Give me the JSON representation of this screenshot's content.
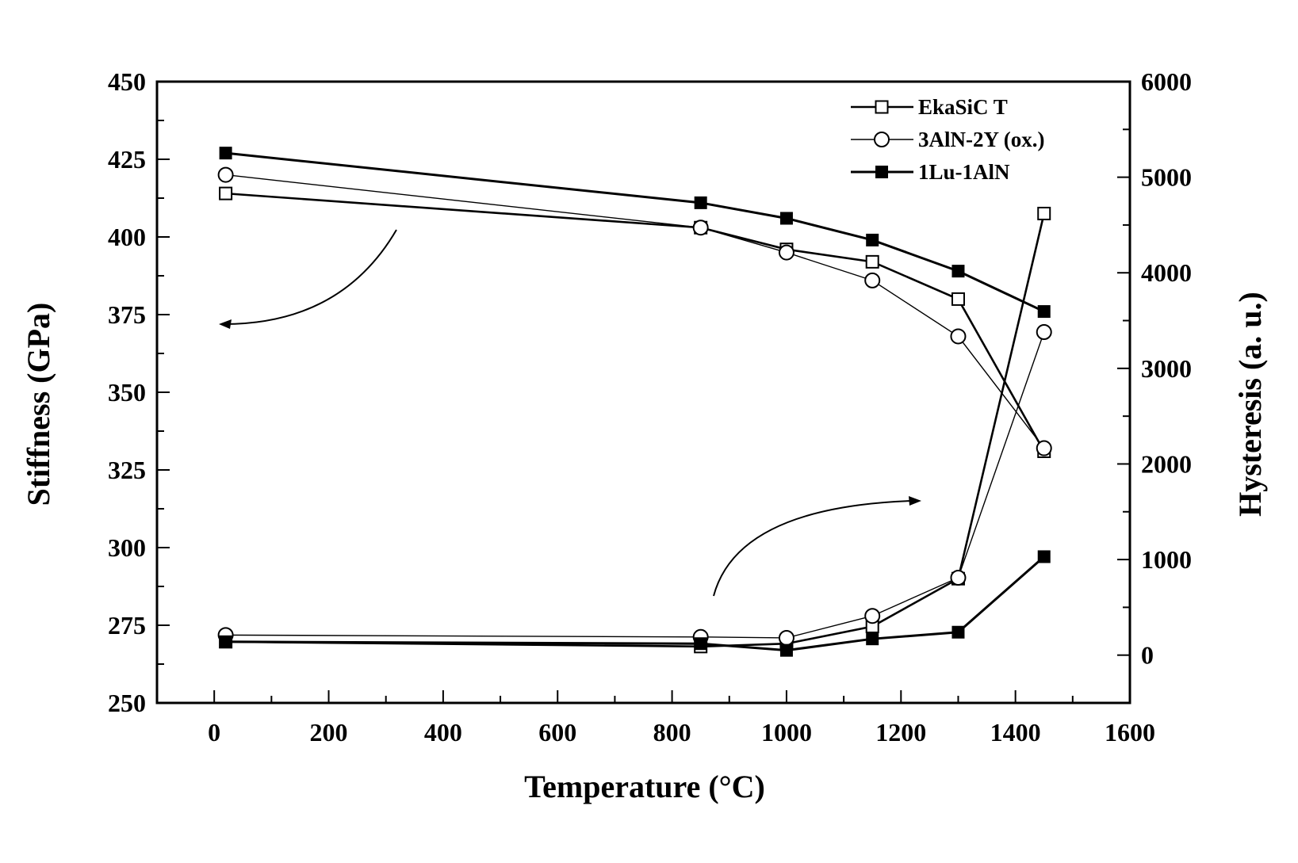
{
  "chart_data": {
    "type": "line",
    "xlabel": "Temperature (°C)",
    "ylabel": "Stiffness (GPa)",
    "y2label": "Hysteresis (a. u.)",
    "xlim": [
      -100,
      1600
    ],
    "ylim": [
      250,
      450
    ],
    "y2lim": [
      -500,
      6000
    ],
    "xticks": [
      0,
      200,
      400,
      600,
      800,
      1000,
      1200,
      1400,
      1600
    ],
    "yticks": [
      250,
      275,
      300,
      325,
      350,
      375,
      400,
      425,
      450
    ],
    "y2ticks": [
      0,
      1000,
      2000,
      3000,
      4000,
      5000,
      6000
    ],
    "legend_position": "top-right",
    "grid": false,
    "series": [
      {
        "name": "EkaSiC T",
        "marker": "open-square",
        "stiffness": {
          "x": [
            20,
            850,
            1000,
            1150,
            1300,
            1450
          ],
          "y": [
            414,
            403,
            396,
            392,
            380,
            331
          ]
        },
        "hysteresis": {
          "x": [
            20,
            850,
            1000,
            1150,
            1300,
            1450
          ],
          "y": [
            140,
            90,
            120,
            300,
            800,
            4620
          ]
        }
      },
      {
        "name": "3AlN-2Y (ox.)",
        "marker": "open-circle",
        "stiffness": {
          "x": [
            20,
            850,
            1000,
            1150,
            1300,
            1450
          ],
          "y": [
            420,
            403,
            395,
            386,
            368,
            332
          ]
        },
        "hysteresis": {
          "x": [
            20,
            850,
            1000,
            1150,
            1300,
            1450
          ],
          "y": [
            210,
            190,
            180,
            410,
            810,
            3380
          ]
        }
      },
      {
        "name": "1Lu-1AlN",
        "marker": "filled-square",
        "stiffness": {
          "x": [
            20,
            850,
            1000,
            1150,
            1300,
            1450
          ],
          "y": [
            427,
            411,
            406,
            399,
            389,
            376
          ]
        },
        "hysteresis": {
          "x": [
            20,
            850,
            1000,
            1150,
            1300,
            1450
          ],
          "y": [
            140,
            120,
            50,
            170,
            240,
            1030
          ]
        }
      }
    ]
  }
}
